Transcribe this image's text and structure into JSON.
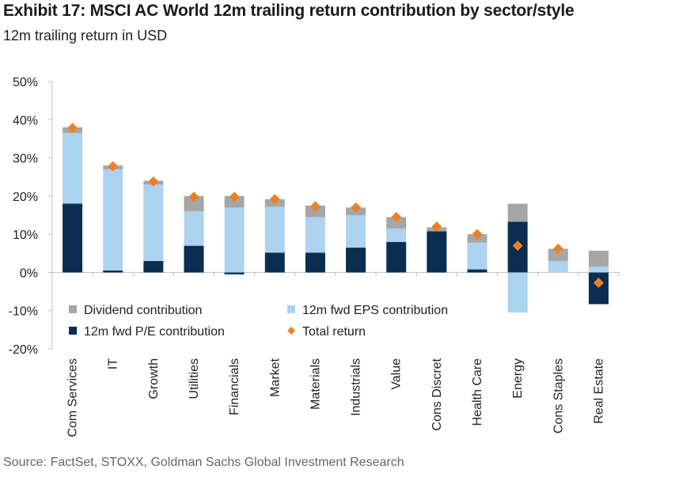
{
  "header": {
    "title": "Exhibit 17: MSCI AC World 12m trailing return contribution by sector/style",
    "subtitle": "12m trailing return in USD"
  },
  "footer": {
    "source": "Source: FactSet, STOXX, Goldman Sachs Global Investment Research"
  },
  "colors": {
    "dividend": "#a6a6a6",
    "eps": "#acd3f0",
    "pe": "#0b2d4f",
    "total": "#f07f22",
    "axis": "#bfbfbf"
  },
  "chart_data": {
    "type": "bar",
    "stacked": true,
    "title": "Exhibit 17: MSCI AC World 12m trailing return contribution by sector/style",
    "subtitle": "12m trailing return in USD",
    "ylim": [
      -20,
      50
    ],
    "yticks": [
      50,
      40,
      30,
      20,
      10,
      0,
      -10,
      -20
    ],
    "ytick_labels": [
      "50%",
      "40%",
      "30%",
      "20%",
      "10%",
      "0%",
      "-10%",
      "-20%"
    ],
    "legend_position": "inside-lower-left",
    "categories": [
      "Com Services",
      "IT",
      "Growth",
      "Utilities",
      "Financials",
      "Market",
      "Materials",
      "Industrials",
      "Value",
      "Cons Discret",
      "Health Care",
      "Energy",
      "Cons Staples",
      "Real Estate"
    ],
    "series": [
      {
        "name": "12m fwd P/E contribution",
        "type": "bar",
        "values": [
          18,
          0.5,
          3,
          7,
          -0.5,
          5.2,
          5.2,
          6.5,
          8,
          10.8,
          0.8,
          13.3,
          0,
          -8.3
        ]
      },
      {
        "name": "12m fwd EPS contribution",
        "type": "bar",
        "values": [
          18.5,
          26.5,
          20,
          9,
          17,
          12,
          9.3,
          8.5,
          3.5,
          0,
          7,
          -10.5,
          3,
          1.5
        ]
      },
      {
        "name": "Dividend contribution",
        "type": "bar",
        "values": [
          1.5,
          1,
          1,
          4,
          3,
          2,
          3,
          2,
          3,
          1,
          2.2,
          4.7,
          3.2,
          4.2
        ]
      },
      {
        "name": "Total return",
        "type": "scatter",
        "marker": "diamond",
        "values": [
          37.8,
          27.8,
          23.8,
          19.8,
          19.8,
          19.2,
          17.3,
          17,
          14.5,
          12,
          10,
          7,
          6.2,
          -2.7
        ]
      }
    ],
    "legend": [
      {
        "label": "Dividend contribution",
        "series": "Dividend contribution"
      },
      {
        "label": "12m fwd EPS contribution",
        "series": "12m fwd EPS contribution"
      },
      {
        "label": "12m fwd P/E contribution",
        "series": "12m fwd P/E contribution"
      },
      {
        "label": "Total return",
        "series": "Total return"
      }
    ]
  }
}
